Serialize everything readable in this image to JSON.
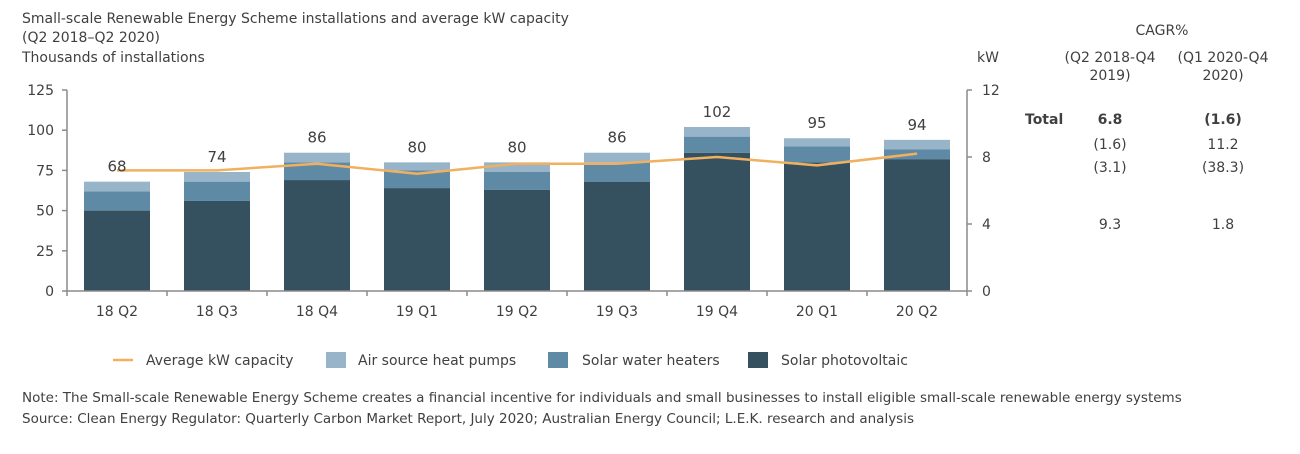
{
  "chart_data": {
    "type": "bar",
    "stacked": true,
    "title": "Small-scale Renewable Energy Scheme installations and average kW capacity",
    "subtitle": "(Q2 2018–Q2 2020)",
    "ylabel": "Thousands of installations",
    "y2label": "kW",
    "ylim": [
      0,
      125
    ],
    "y2lim": [
      0,
      12
    ],
    "yticks": [
      "0",
      "25",
      "50",
      "75",
      "100",
      "125"
    ],
    "y2ticks": [
      "0",
      "4",
      "8",
      "12"
    ],
    "grid": false,
    "legend_position": "bottom",
    "categories": [
      "18 Q2",
      "18 Q3",
      "18 Q4",
      "19 Q1",
      "19 Q2",
      "19 Q3",
      "19 Q4",
      "20 Q1",
      "20 Q2"
    ],
    "totals": [
      "68",
      "74",
      "86",
      "80",
      "80",
      "86",
      "102",
      "95",
      "94"
    ],
    "series": [
      {
        "name": "Solar photovoltaic",
        "color": "#35505f",
        "values": [
          50,
          56,
          69,
          64,
          63,
          68,
          86,
          80,
          82
        ]
      },
      {
        "name": "Solar water heaters",
        "color": "#5e8aa5",
        "values": [
          12,
          12,
          11,
          11,
          11,
          12,
          10,
          10,
          6
        ]
      },
      {
        "name": "Air source heat pumps",
        "color": "#97b4c8",
        "values": [
          6,
          6,
          6,
          5,
          6,
          6,
          6,
          5,
          6
        ]
      }
    ],
    "line": {
      "name": "Average kW capacity",
      "color": "#f0b060",
      "axis": "right",
      "values": [
        7.2,
        7.2,
        7.6,
        7.0,
        7.6,
        7.6,
        8.0,
        7.5,
        8.2
      ]
    },
    "legend_order": [
      "Average kW capacity",
      "Air source heat pumps",
      "Solar water heaters",
      "Solar photovoltaic"
    ]
  },
  "cagr": {
    "title": "CAGR%",
    "col1": [
      "(Q2 2018-Q4",
      "2019)"
    ],
    "col2": [
      "(Q1 2020-Q4",
      "2020)"
    ],
    "rows": [
      {
        "label": "Total",
        "v1": "6.8",
        "v2": "(1.6)"
      },
      {
        "label": "",
        "v1": "(1.6)",
        "v2": "11.2"
      },
      {
        "label": "",
        "v1": "(3.1)",
        "v2": "(38.3)"
      },
      {
        "label": "",
        "v1": "9.3",
        "v2": "1.8"
      }
    ]
  },
  "footer": {
    "note": "Note: The Small-scale Renewable Energy Scheme creates a financial incentive for individuals and small businesses to install eligible small-scale renewable energy systems",
    "source": "Source: Clean Energy Regulator: Quarterly Carbon Market Report, July 2020; Australian Energy Council; L.E.K. research and analysis"
  }
}
